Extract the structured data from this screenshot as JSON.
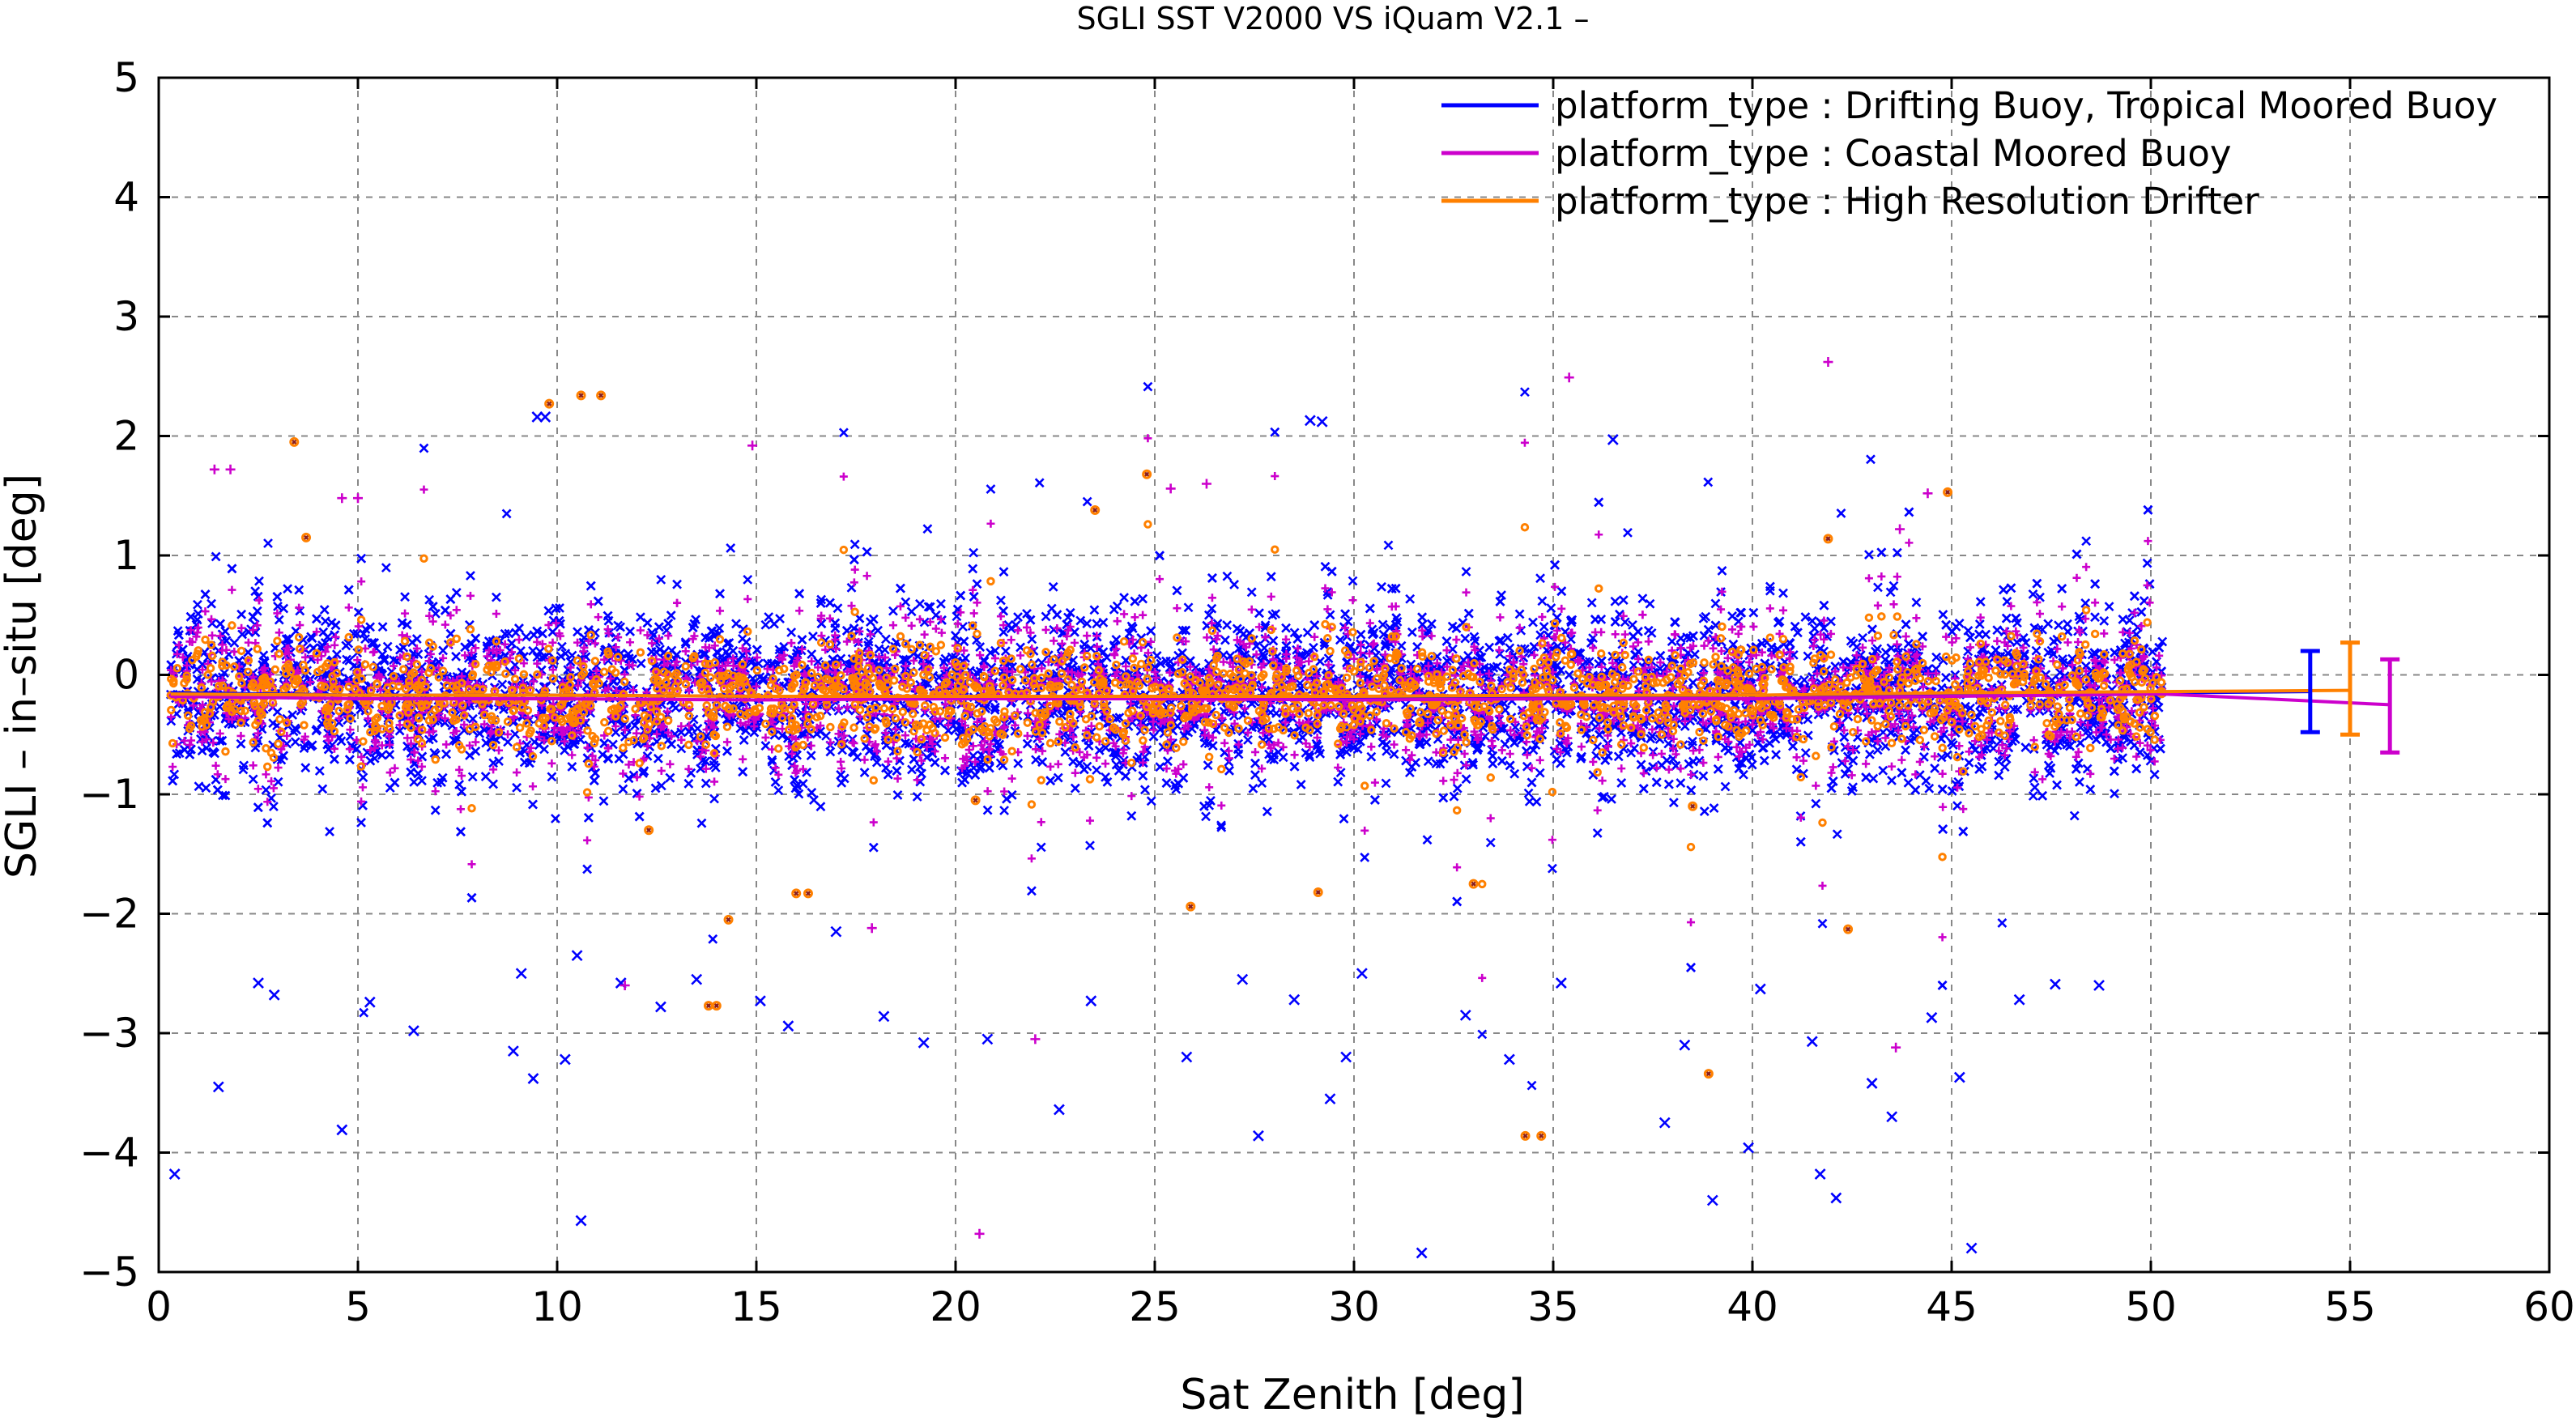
{
  "chart_data": {
    "type": "scatter",
    "title": "SGLI SST V2000 VS iQuam V2.1  –",
    "xlabel": "Sat Zenith [deg]",
    "ylabel": "SGLI – in–situ [deg]",
    "xlim": [
      0,
      60
    ],
    "ylim": [
      -5,
      5
    ],
    "xticks": [
      0,
      5,
      10,
      15,
      20,
      25,
      30,
      35,
      40,
      45,
      50,
      55,
      60
    ],
    "yticks": [
      -5,
      -4,
      -3,
      -2,
      -1,
      0,
      1,
      2,
      3,
      4,
      5
    ],
    "ytick_labels": [
      "−5",
      "−4",
      "−3",
      "−2",
      "−1",
      "0",
      "1",
      "2",
      "3",
      "4",
      "5"
    ],
    "grid": true,
    "legend_position": "top-right",
    "series": [
      {
        "name": "platform_type : Drifting Buoy, Tropical Moored Buoy",
        "color": "#0000ff",
        "marker": "x",
        "mean_line": {
          "x": [
            0.3,
            5,
            10,
            15,
            20,
            25,
            30,
            35,
            40,
            45,
            50.3,
            54
          ],
          "y": [
            -0.15,
            -0.17,
            -0.17,
            -0.18,
            -0.18,
            -0.18,
            -0.19,
            -0.18,
            -0.17,
            -0.16,
            -0.15,
            -0.14
          ]
        },
        "summary_errorbar": {
          "x": 54.0,
          "mean": -0.14,
          "low": -0.48,
          "high": 0.2
        },
        "outliers": [
          [
            0.4,
            -4.18
          ],
          [
            1.5,
            -3.45
          ],
          [
            2.5,
            -2.58
          ],
          [
            2.9,
            -2.68
          ],
          [
            4.6,
            -3.81
          ],
          [
            5.3,
            -2.74
          ],
          [
            6.4,
            -2.98
          ],
          [
            8.9,
            -3.15
          ],
          [
            9.1,
            -2.5
          ],
          [
            9.4,
            -3.38
          ],
          [
            9.5,
            2.16
          ],
          [
            9.7,
            2.16
          ],
          [
            10.2,
            -3.22
          ],
          [
            10.5,
            -2.35
          ],
          [
            10.6,
            -4.57
          ],
          [
            11.6,
            -2.58
          ],
          [
            12.6,
            -2.78
          ],
          [
            13.5,
            -2.55
          ],
          [
            15.1,
            -2.73
          ],
          [
            15.8,
            -2.94
          ],
          [
            17.0,
            -2.15
          ],
          [
            18.2,
            -2.86
          ],
          [
            19.2,
            -3.08
          ],
          [
            20.8,
            -3.05
          ],
          [
            22.6,
            -3.64
          ],
          [
            23.4,
            -2.73
          ],
          [
            25.8,
            -3.2
          ],
          [
            27.2,
            -2.55
          ],
          [
            27.6,
            -3.86
          ],
          [
            28.5,
            -2.72
          ],
          [
            28.9,
            2.13
          ],
          [
            29.2,
            2.12
          ],
          [
            29.4,
            -3.55
          ],
          [
            29.8,
            -3.2
          ],
          [
            30.2,
            -2.5
          ],
          [
            31.7,
            -4.84
          ],
          [
            32.8,
            -2.85
          ],
          [
            33.9,
            -3.22
          ],
          [
            35.2,
            -2.58
          ],
          [
            36.5,
            1.97
          ],
          [
            37.8,
            -3.75
          ],
          [
            38.3,
            -3.1
          ],
          [
            39.0,
            -4.4
          ],
          [
            39.9,
            -3.96
          ],
          [
            40.2,
            -2.63
          ],
          [
            41.5,
            -3.07
          ],
          [
            41.7,
            -4.18
          ],
          [
            42.1,
            -4.38
          ],
          [
            43.0,
            -3.42
          ],
          [
            43.5,
            -3.7
          ],
          [
            44.5,
            -2.87
          ],
          [
            45.2,
            -3.37
          ],
          [
            45.5,
            -4.8
          ],
          [
            46.7,
            -2.72
          ],
          [
            47.6,
            -2.59
          ],
          [
            48.7,
            -2.6
          ]
        ]
      },
      {
        "name": "platform_type : Coastal Moored Buoy",
        "color": "#cc00cc",
        "marker": "+",
        "mean_line": {
          "x": [
            0.3,
            5,
            10,
            15,
            20,
            25,
            30,
            35,
            40,
            45,
            50.3,
            56
          ],
          "y": [
            -0.18,
            -0.2,
            -0.2,
            -0.21,
            -0.2,
            -0.2,
            -0.21,
            -0.2,
            -0.2,
            -0.18,
            -0.16,
            -0.25
          ]
        },
        "summary_errorbar": {
          "x": 56.0,
          "mean": -0.25,
          "low": -0.65,
          "high": 0.13
        },
        "outliers": [
          [
            1.4,
            1.72
          ],
          [
            1.8,
            1.72
          ],
          [
            4.6,
            1.48
          ],
          [
            5.0,
            1.48
          ],
          [
            14.9,
            1.92
          ],
          [
            20.6,
            -4.68
          ],
          [
            22.0,
            -3.05
          ],
          [
            25.4,
            1.56
          ],
          [
            26.3,
            1.6
          ],
          [
            35.4,
            2.49
          ],
          [
            41.9,
            2.62
          ],
          [
            43.7,
            1.22
          ],
          [
            44.4,
            1.52
          ],
          [
            43.6,
            -3.12
          ],
          [
            11.7,
            -2.6
          ],
          [
            17.9,
            -2.12
          ]
        ]
      },
      {
        "name": "platform_type : High Resolution Drifter",
        "color": "#ff8000",
        "marker": "o",
        "mean_line": {
          "x": [
            0.3,
            5,
            10,
            15,
            20,
            25,
            30,
            35,
            40,
            45,
            50.3,
            55
          ],
          "y": [
            -0.16,
            -0.17,
            -0.17,
            -0.18,
            -0.18,
            -0.18,
            -0.18,
            -0.17,
            -0.17,
            -0.15,
            -0.14,
            -0.13
          ]
        },
        "summary_errorbar": {
          "x": 55.0,
          "mean": -0.13,
          "low": -0.5,
          "high": 0.27
        },
        "outliers": [
          [
            3.4,
            1.95
          ],
          [
            3.7,
            1.15
          ],
          [
            9.8,
            2.27
          ],
          [
            10.6,
            2.34
          ],
          [
            11.1,
            2.34
          ],
          [
            13.8,
            -2.77
          ],
          [
            14.0,
            -2.77
          ],
          [
            14.3,
            -2.05
          ],
          [
            16.0,
            -1.83
          ],
          [
            16.3,
            -1.83
          ],
          [
            23.5,
            1.38
          ],
          [
            24.8,
            1.68
          ],
          [
            25.9,
            -1.94
          ],
          [
            29.1,
            -1.82
          ],
          [
            33.0,
            -1.75
          ],
          [
            34.3,
            -3.86
          ],
          [
            34.7,
            -3.86
          ],
          [
            38.9,
            -3.34
          ],
          [
            41.9,
            1.14
          ],
          [
            42.4,
            -2.13
          ],
          [
            44.9,
            1.53
          ],
          [
            12.3,
            -1.3
          ],
          [
            20.5,
            -1.05
          ],
          [
            38.5,
            -1.1
          ]
        ]
      }
    ],
    "dense_band": {
      "x_range": [
        0.3,
        50.3
      ],
      "y_center": -0.18
    }
  }
}
